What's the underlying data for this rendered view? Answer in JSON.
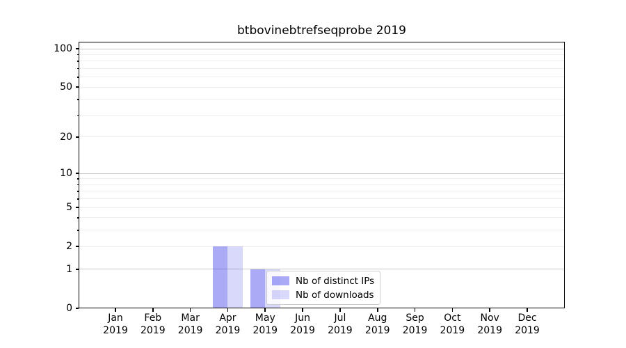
{
  "chart_data": {
    "type": "bar",
    "title": "btbovinebtrefseqprobe 2019",
    "categories": [
      "Jan 2019",
      "Feb 2019",
      "Mar 2019",
      "Apr 2019",
      "May 2019",
      "Jun 2019",
      "Jul 2019",
      "Aug 2019",
      "Sep 2019",
      "Oct 2019",
      "Nov 2019",
      "Dec 2019"
    ],
    "series": [
      {
        "name": "Nb of distinct IPs",
        "color": "#0000e655",
        "values": [
          0,
          0,
          0,
          2,
          1,
          0,
          0,
          0,
          0,
          0,
          0,
          0
        ]
      },
      {
        "name": "Nb of downloads",
        "color": "#0000e626",
        "values": [
          0,
          0,
          0,
          2,
          1,
          0,
          0,
          0,
          0,
          0,
          0,
          0
        ]
      }
    ],
    "xlabel": "",
    "ylabel": "",
    "yscale": "log1p-symlog",
    "ylim": [
      0,
      113
    ],
    "yticks_labeled": [
      0,
      1,
      2,
      5,
      10,
      20,
      50,
      100
    ],
    "ytick_labels": [
      "0",
      "1",
      "2",
      "5",
      "10",
      "20",
      "50",
      "100"
    ],
    "yticks_minor": [
      3,
      4,
      6,
      7,
      8,
      9,
      30,
      40,
      60,
      70,
      80,
      90
    ],
    "ygrid_major_values": [
      1,
      10,
      100
    ],
    "grid": "horizontal",
    "legend_position": "lower right inside plot"
  },
  "colors": {
    "background": "#ffffff",
    "axis": "#000000",
    "grid_major": "#c9c9c9",
    "grid_minor": "#eeeeee",
    "legend_border": "#cccccc",
    "text": "#000000"
  }
}
